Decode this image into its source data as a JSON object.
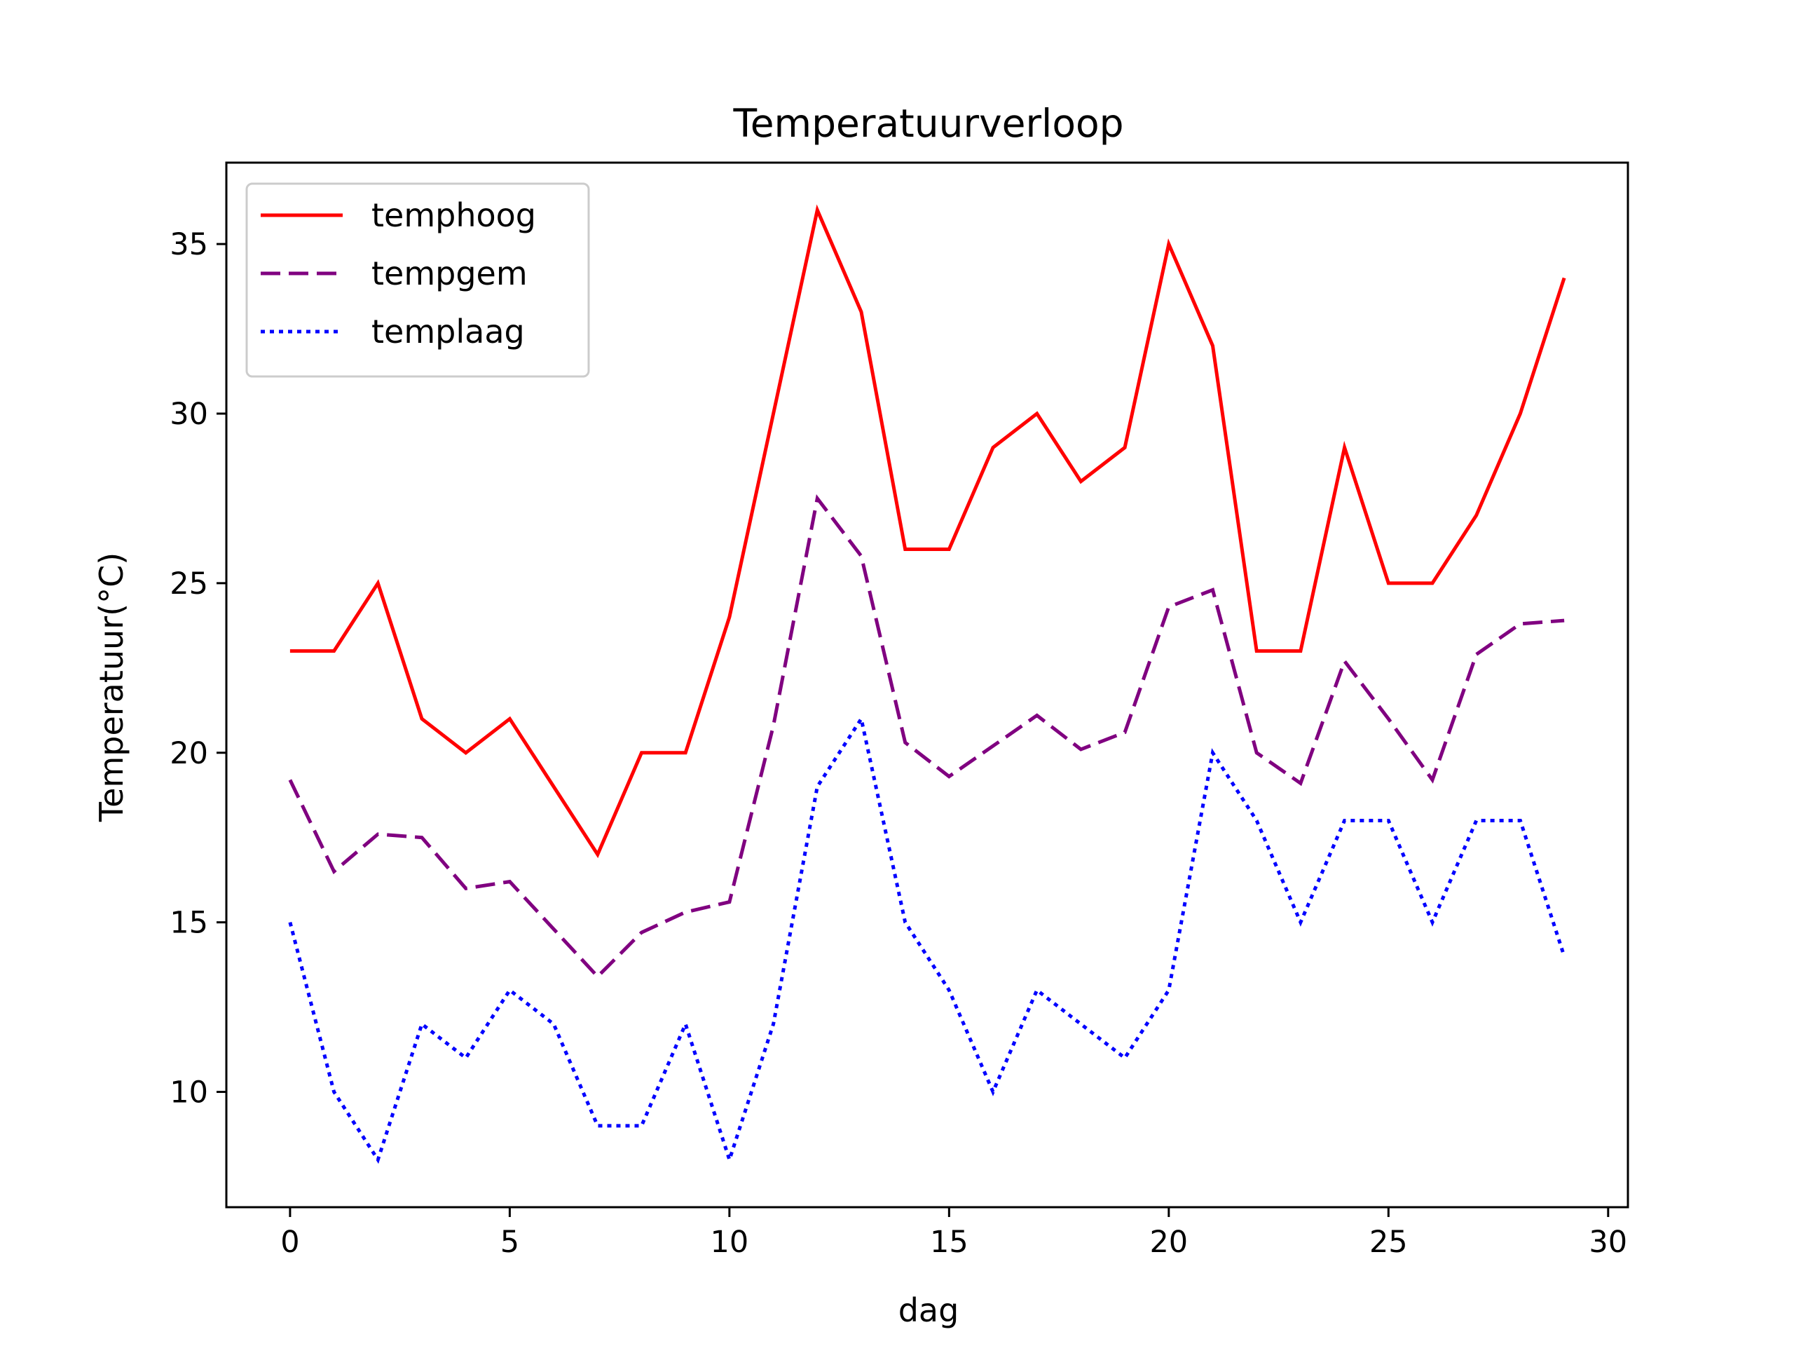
{
  "chart_data": {
    "type": "line",
    "title": "Temperatuurverloop",
    "xlabel": "dag",
    "ylabel": "Temperatuur(°C)",
    "xlim": [
      -1.45,
      30.45
    ],
    "ylim": [
      6.6,
      37.4
    ],
    "xticks": [
      0,
      5,
      10,
      15,
      20,
      25,
      30
    ],
    "yticks": [
      10,
      15,
      20,
      25,
      30,
      35
    ],
    "grid": false,
    "legend": "top-left",
    "x": [
      0,
      1,
      2,
      3,
      4,
      5,
      6,
      7,
      8,
      9,
      10,
      11,
      12,
      13,
      14,
      15,
      16,
      17,
      18,
      19,
      20,
      21,
      22,
      23,
      24,
      25,
      26,
      27,
      28,
      29
    ],
    "series": [
      {
        "name": "temphoog",
        "color": "#ff0000",
        "linestyle": "solid",
        "values": [
          23,
          23,
          25,
          21,
          20,
          21,
          19,
          17,
          20,
          20,
          24,
          30,
          36,
          33,
          26,
          26,
          29,
          30,
          28,
          29,
          35,
          32,
          23,
          23,
          29,
          25,
          25,
          27,
          30,
          34
        ]
      },
      {
        "name": "tempgem",
        "color": "#800080",
        "linestyle": "dashed",
        "values": [
          19.2,
          16.5,
          17.6,
          17.5,
          16.0,
          16.2,
          14.8,
          13.4,
          14.7,
          15.3,
          15.6,
          20.8,
          27.5,
          25.8,
          20.3,
          19.3,
          20.2,
          21.1,
          20.1,
          20.6,
          24.3,
          24.8,
          20.0,
          19.1,
          22.7,
          21.0,
          19.2,
          22.9,
          23.8,
          23.9
        ]
      },
      {
        "name": "templaag",
        "color": "#0000ff",
        "linestyle": "dotted",
        "values": [
          15,
          10,
          8,
          12,
          11,
          13,
          12,
          9,
          9,
          12,
          8,
          12,
          19,
          21,
          15,
          13,
          10,
          13,
          12,
          11,
          13,
          20,
          18,
          15,
          18,
          18,
          15,
          18,
          18,
          14
        ]
      }
    ]
  }
}
